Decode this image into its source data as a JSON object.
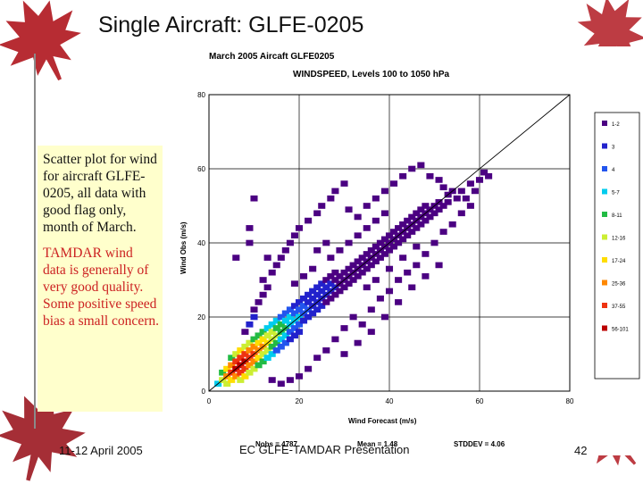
{
  "slide": {
    "title": "Single Aircraft: GLFE-0205",
    "callout": {
      "paragraph_1": "Scatter plot for wind for aircraft GLFE-0205, all data with good flag only, month of March.",
      "paragraph_2": "TAMDAR wind data is generally of very good quality. Some positive speed bias a small concern."
    },
    "footer": {
      "date": "11-12 April 2005",
      "presentation": "EC GLFE-TAMDAR Presentation",
      "page": "42"
    }
  },
  "colors": {
    "callout_bg": "#ffffcc",
    "callout_highlight": "#cc2222",
    "leaf": "#b11a22"
  },
  "chart_data": {
    "type": "heatmap",
    "title": "March 2005  Aircaft GLFE0205",
    "subtitle": "WINDSPEED, Levels 100 to 1050 hPa",
    "xlabel": "Wind Forecast (m/s)",
    "ylabel": "Wind Obs (m/s)",
    "xlim": [
      0,
      80
    ],
    "ylim": [
      0,
      80
    ],
    "xticks": [
      "0",
      "20",
      "40",
      "60",
      "80"
    ],
    "yticks": [
      "0",
      "20",
      "40",
      "60",
      "80"
    ],
    "grid": true,
    "reference_line": "y = x",
    "legend": {
      "placement": "right",
      "entries": [
        {
          "label": "1-2",
          "color": "#4b0082"
        },
        {
          "label": "3",
          "color": "#2222cc"
        },
        {
          "label": "4",
          "color": "#2255ee"
        },
        {
          "label": "5-7",
          "color": "#00ccee"
        },
        {
          "label": "8-11",
          "color": "#22bb44"
        },
        {
          "label": "12-16",
          "color": "#ccee33"
        },
        {
          "label": "17-24",
          "color": "#ffdd00"
        },
        {
          "label": "25-36",
          "color": "#ff8800"
        },
        {
          "label": "37-55",
          "color": "#ee3311"
        },
        {
          "label": "56-101",
          "color": "#bb0000"
        }
      ]
    },
    "stats": {
      "nobs": "Nobs = 4787",
      "mean": "Mean = 1.48",
      "stddev": "STDDEV = 4.06"
    },
    "cells_note": "density cells read approximately from the image: [forecast m/s, obs m/s, legend class index]",
    "cells": [
      [
        2,
        2,
        3
      ],
      [
        3,
        3,
        5
      ],
      [
        3,
        5,
        4
      ],
      [
        4,
        2,
        5
      ],
      [
        4,
        4,
        7
      ],
      [
        4,
        6,
        6
      ],
      [
        5,
        3,
        6
      ],
      [
        5,
        5,
        8
      ],
      [
        5,
        7,
        7
      ],
      [
        5,
        9,
        4
      ],
      [
        6,
        4,
        7
      ],
      [
        6,
        6,
        9
      ],
      [
        6,
        8,
        8
      ],
      [
        6,
        10,
        5
      ],
      [
        7,
        3,
        5
      ],
      [
        7,
        5,
        8
      ],
      [
        7,
        7,
        9
      ],
      [
        7,
        9,
        8
      ],
      [
        7,
        11,
        6
      ],
      [
        8,
        4,
        6
      ],
      [
        8,
        6,
        8
      ],
      [
        8,
        8,
        9
      ],
      [
        8,
        10,
        8
      ],
      [
        8,
        12,
        5
      ],
      [
        9,
        5,
        5
      ],
      [
        9,
        7,
        7
      ],
      [
        9,
        9,
        8
      ],
      [
        9,
        11,
        7
      ],
      [
        9,
        13,
        5
      ],
      [
        10,
        6,
        5
      ],
      [
        10,
        8,
        7
      ],
      [
        10,
        10,
        8
      ],
      [
        10,
        12,
        7
      ],
      [
        10,
        14,
        4
      ],
      [
        11,
        7,
        4
      ],
      [
        11,
        9,
        6
      ],
      [
        11,
        11,
        7
      ],
      [
        11,
        13,
        6
      ],
      [
        11,
        15,
        4
      ],
      [
        12,
        8,
        4
      ],
      [
        12,
        10,
        5
      ],
      [
        12,
        12,
        7
      ],
      [
        12,
        14,
        6
      ],
      [
        12,
        16,
        4
      ],
      [
        13,
        9,
        3
      ],
      [
        13,
        11,
        5
      ],
      [
        13,
        13,
        6
      ],
      [
        13,
        15,
        5
      ],
      [
        13,
        17,
        3
      ],
      [
        14,
        10,
        3
      ],
      [
        14,
        12,
        4
      ],
      [
        14,
        14,
        5
      ],
      [
        14,
        16,
        5
      ],
      [
        14,
        18,
        3
      ],
      [
        15,
        11,
        2
      ],
      [
        15,
        13,
        4
      ],
      [
        15,
        15,
        5
      ],
      [
        15,
        17,
        4
      ],
      [
        15,
        19,
        3
      ],
      [
        16,
        12,
        2
      ],
      [
        16,
        14,
        3
      ],
      [
        16,
        16,
        4
      ],
      [
        16,
        18,
        4
      ],
      [
        16,
        20,
        2
      ],
      [
        17,
        13,
        2
      ],
      [
        17,
        15,
        3
      ],
      [
        17,
        17,
        4
      ],
      [
        17,
        19,
        3
      ],
      [
        17,
        21,
        2
      ],
      [
        18,
        14,
        1
      ],
      [
        18,
        16,
        2
      ],
      [
        18,
        18,
        3
      ],
      [
        18,
        20,
        3
      ],
      [
        18,
        22,
        2
      ],
      [
        19,
        15,
        1
      ],
      [
        19,
        17,
        2
      ],
      [
        19,
        19,
        3
      ],
      [
        19,
        21,
        2
      ],
      [
        19,
        23,
        1
      ],
      [
        20,
        16,
        1
      ],
      [
        20,
        18,
        2
      ],
      [
        20,
        20,
        3
      ],
      [
        20,
        22,
        2
      ],
      [
        20,
        24,
        1
      ],
      [
        21,
        19,
        1
      ],
      [
        21,
        21,
        2
      ],
      [
        21,
        23,
        2
      ],
      [
        21,
        25,
        1
      ],
      [
        22,
        20,
        1
      ],
      [
        22,
        22,
        2
      ],
      [
        22,
        24,
        1
      ],
      [
        22,
        26,
        1
      ],
      [
        23,
        21,
        1
      ],
      [
        23,
        23,
        1
      ],
      [
        23,
        25,
        1
      ],
      [
        23,
        27,
        1
      ],
      [
        24,
        22,
        1
      ],
      [
        24,
        24,
        1
      ],
      [
        24,
        26,
        1
      ],
      [
        24,
        28,
        1
      ],
      [
        25,
        23,
        1
      ],
      [
        25,
        25,
        1
      ],
      [
        25,
        27,
        1
      ],
      [
        25,
        29,
        1
      ],
      [
        26,
        24,
        0
      ],
      [
        26,
        26,
        1
      ],
      [
        26,
        28,
        1
      ],
      [
        26,
        30,
        0
      ],
      [
        27,
        25,
        0
      ],
      [
        27,
        27,
        1
      ],
      [
        27,
        29,
        1
      ],
      [
        27,
        31,
        0
      ],
      [
        28,
        26,
        0
      ],
      [
        28,
        28,
        1
      ],
      [
        28,
        30,
        0
      ],
      [
        28,
        32,
        0
      ],
      [
        29,
        27,
        0
      ],
      [
        29,
        29,
        0
      ],
      [
        29,
        31,
        0
      ],
      [
        30,
        28,
        0
      ],
      [
        30,
        30,
        0
      ],
      [
        30,
        32,
        0
      ],
      [
        31,
        29,
        0
      ],
      [
        31,
        31,
        0
      ],
      [
        31,
        33,
        0
      ],
      [
        32,
        30,
        0
      ],
      [
        32,
        32,
        0
      ],
      [
        32,
        34,
        0
      ],
      [
        33,
        31,
        0
      ],
      [
        33,
        33,
        0
      ],
      [
        33,
        35,
        0
      ],
      [
        34,
        32,
        0
      ],
      [
        34,
        34,
        0
      ],
      [
        34,
        36,
        0
      ],
      [
        35,
        33,
        0
      ],
      [
        35,
        35,
        0
      ],
      [
        35,
        37,
        0
      ],
      [
        36,
        34,
        0
      ],
      [
        36,
        36,
        0
      ],
      [
        36,
        38,
        0
      ],
      [
        37,
        35,
        0
      ],
      [
        37,
        37,
        0
      ],
      [
        37,
        39,
        0
      ],
      [
        38,
        36,
        0
      ],
      [
        38,
        38,
        0
      ],
      [
        38,
        40,
        0
      ],
      [
        39,
        37,
        0
      ],
      [
        39,
        39,
        0
      ],
      [
        39,
        41,
        0
      ],
      [
        40,
        38,
        0
      ],
      [
        40,
        40,
        0
      ],
      [
        40,
        42,
        0
      ],
      [
        41,
        39,
        0
      ],
      [
        41,
        41,
        0
      ],
      [
        41,
        43,
        0
      ],
      [
        42,
        40,
        0
      ],
      [
        42,
        42,
        0
      ],
      [
        42,
        44,
        0
      ],
      [
        43,
        41,
        0
      ],
      [
        43,
        43,
        0
      ],
      [
        43,
        45,
        0
      ],
      [
        44,
        42,
        0
      ],
      [
        44,
        44,
        0
      ],
      [
        44,
        46,
        0
      ],
      [
        45,
        43,
        0
      ],
      [
        45,
        45,
        0
      ],
      [
        45,
        47,
        0
      ],
      [
        46,
        44,
        0
      ],
      [
        46,
        46,
        0
      ],
      [
        46,
        48,
        0
      ],
      [
        47,
        45,
        0
      ],
      [
        47,
        47,
        0
      ],
      [
        47,
        49,
        0
      ],
      [
        48,
        46,
        0
      ],
      [
        48,
        48,
        0
      ],
      [
        48,
        50,
        0
      ],
      [
        49,
        47,
        0
      ],
      [
        49,
        49,
        0
      ],
      [
        50,
        48,
        0
      ],
      [
        50,
        50,
        0
      ],
      [
        51,
        49,
        0
      ],
      [
        51,
        51,
        0
      ],
      [
        52,
        50,
        0
      ],
      [
        53,
        51,
        0
      ],
      [
        53,
        53,
        0
      ],
      [
        55,
        52,
        0
      ],
      [
        56,
        54,
        0
      ],
      [
        58,
        56,
        0
      ],
      [
        60,
        57,
        0
      ],
      [
        61,
        59,
        0
      ],
      [
        8,
        16,
        0
      ],
      [
        9,
        18,
        1
      ],
      [
        10,
        20,
        1
      ],
      [
        10,
        22,
        0
      ],
      [
        11,
        24,
        0
      ],
      [
        12,
        26,
        0
      ],
      [
        12,
        30,
        0
      ],
      [
        13,
        28,
        0
      ],
      [
        14,
        32,
        0
      ],
      [
        15,
        34,
        0
      ],
      [
        16,
        36,
        0
      ],
      [
        17,
        38,
        0
      ],
      [
        18,
        40,
        0
      ],
      [
        19,
        42,
        0
      ],
      [
        20,
        44,
        0
      ],
      [
        22,
        46,
        0
      ],
      [
        24,
        48,
        0
      ],
      [
        25,
        50,
        0
      ],
      [
        27,
        52,
        0
      ],
      [
        28,
        54,
        0
      ],
      [
        30,
        56,
        0
      ],
      [
        31,
        49,
        0
      ],
      [
        33,
        47,
        0
      ],
      [
        35,
        50,
        0
      ],
      [
        37,
        52,
        0
      ],
      [
        39,
        54,
        0
      ],
      [
        41,
        56,
        0
      ],
      [
        43,
        58,
        0
      ],
      [
        45,
        60,
        0
      ],
      [
        47,
        61,
        0
      ],
      [
        49,
        58,
        0
      ],
      [
        51,
        57,
        0
      ],
      [
        52,
        55,
        0
      ],
      [
        54,
        54,
        0
      ],
      [
        10,
        52,
        0
      ],
      [
        9,
        44,
        0
      ],
      [
        9,
        40,
        0
      ],
      [
        13,
        36,
        0
      ],
      [
        6,
        36,
        0
      ],
      [
        24,
        9,
        0
      ],
      [
        26,
        11,
        0
      ],
      [
        28,
        14,
        0
      ],
      [
        30,
        17,
        0
      ],
      [
        32,
        20,
        0
      ],
      [
        34,
        18,
        0
      ],
      [
        36,
        22,
        0
      ],
      [
        38,
        25,
        0
      ],
      [
        40,
        27,
        0
      ],
      [
        42,
        30,
        0
      ],
      [
        44,
        32,
        0
      ],
      [
        46,
        34,
        0
      ],
      [
        48,
        37,
        0
      ],
      [
        50,
        40,
        0
      ],
      [
        52,
        43,
        0
      ],
      [
        54,
        45,
        0
      ],
      [
        56,
        48,
        0
      ],
      [
        58,
        50,
        0
      ],
      [
        22,
        6,
        0
      ],
      [
        20,
        4,
        0
      ],
      [
        18,
        3,
        0
      ],
      [
        16,
        2,
        0
      ],
      [
        14,
        3,
        0
      ],
      [
        30,
        10,
        0
      ],
      [
        33,
        13,
        0
      ],
      [
        36,
        16,
        0
      ],
      [
        39,
        20,
        0
      ],
      [
        42,
        24,
        0
      ],
      [
        45,
        28,
        0
      ],
      [
        48,
        31,
        0
      ],
      [
        51,
        34,
        0
      ],
      [
        27,
        36,
        0
      ],
      [
        29,
        38,
        0
      ],
      [
        31,
        40,
        0
      ],
      [
        33,
        42,
        0
      ],
      [
        35,
        44,
        0
      ],
      [
        37,
        46,
        0
      ],
      [
        39,
        48,
        0
      ],
      [
        23,
        33,
        0
      ],
      [
        21,
        31,
        0
      ],
      [
        19,
        29,
        0
      ],
      [
        26,
        40,
        0
      ],
      [
        24,
        38,
        0
      ],
      [
        35,
        28,
        0
      ],
      [
        37,
        30,
        0
      ],
      [
        40,
        33,
        0
      ],
      [
        43,
        36,
        0
      ],
      [
        46,
        39,
        0
      ],
      [
        57,
        52,
        0
      ],
      [
        59,
        54,
        0
      ],
      [
        62,
        58,
        0
      ]
    ]
  }
}
